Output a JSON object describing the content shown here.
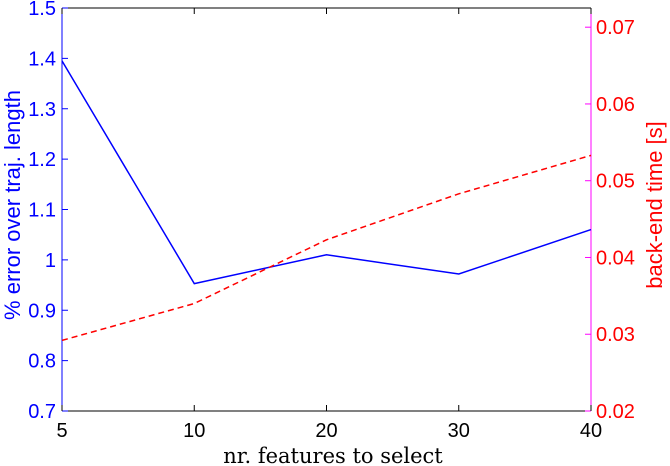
{
  "chart_data": {
    "type": "line",
    "xlabel": "nr. features to select",
    "ylabel_left": "% error over traj. length",
    "ylabel_right": "back-end time [s]",
    "categories": [
      "5",
      "10",
      "20",
      "30",
      "40"
    ],
    "series": [
      {
        "axis": "left",
        "color": "#0000ff",
        "style": "solid",
        "values": [
          1.395,
          0.953,
          1.01,
          0.972,
          1.06
        ]
      },
      {
        "axis": "right",
        "color": "#ff0000",
        "style": "dashed",
        "values": [
          0.0292,
          0.034,
          0.0423,
          0.0483,
          0.0533
        ]
      }
    ],
    "ylim_left": [
      0.7,
      1.5
    ],
    "ylim_right": [
      0.02,
      0.0725
    ],
    "yticks_left": [
      "0.7",
      "0.8",
      "0.9",
      "1",
      "1.1",
      "1.2",
      "1.3",
      "1.4",
      "1.5"
    ],
    "yticks_right": [
      "0.02",
      "0.03",
      "0.04",
      "0.05",
      "0.06",
      "0.07"
    ],
    "grid": false,
    "axis_colors": {
      "left": "#0000ff",
      "right": "#ff00ff",
      "bottom": "#000000"
    }
  }
}
